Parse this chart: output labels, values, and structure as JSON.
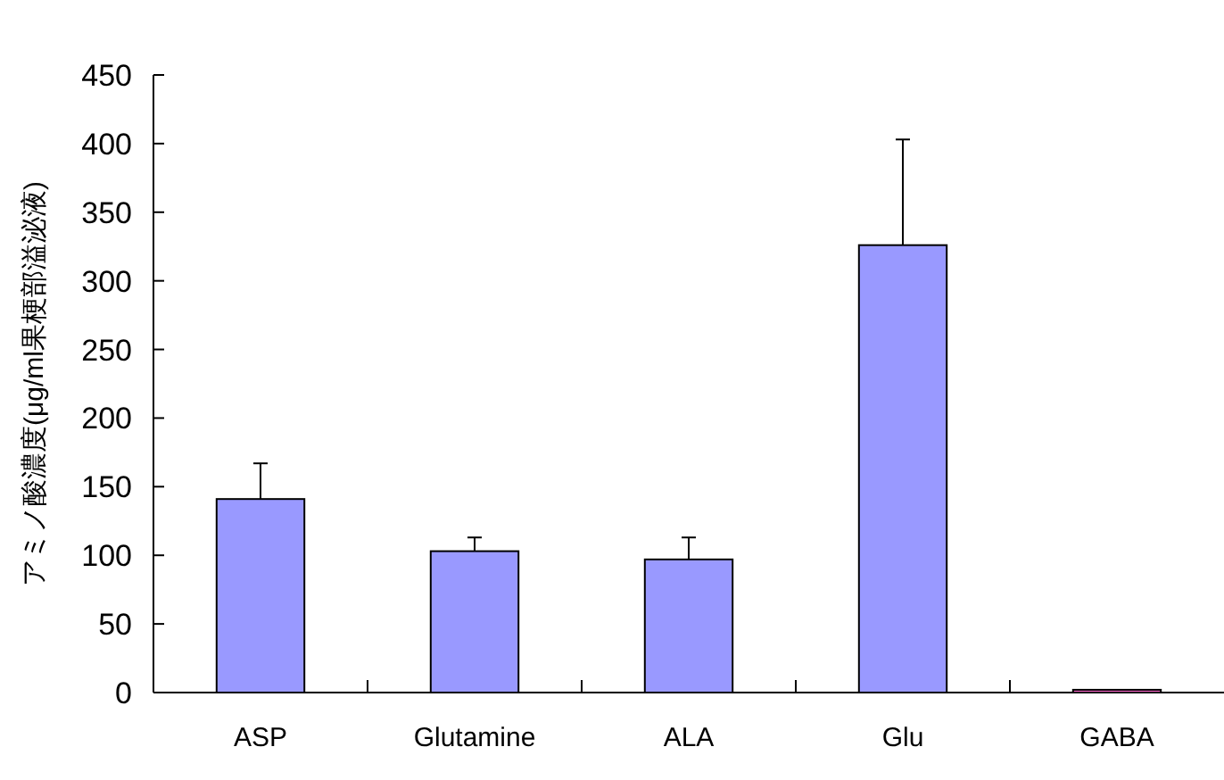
{
  "chart_data": {
    "type": "bar",
    "ylabel": "アミノ酸濃度(μg/ml果梗部溢泌液)",
    "categories": [
      "ASP",
      "Glutamine",
      "ALA",
      "Glu",
      "GABA"
    ],
    "values": [
      141,
      103,
      97,
      326,
      2
    ],
    "errors": [
      26,
      10,
      16,
      77,
      null
    ],
    "colors": [
      "#9999ff",
      "#9999ff",
      "#9999ff",
      "#9999ff",
      "#ff66cc"
    ],
    "ylim": [
      0,
      450
    ],
    "yticks": [
      0,
      50,
      100,
      150,
      200,
      250,
      300,
      350,
      400,
      450
    ],
    "grid": false
  }
}
